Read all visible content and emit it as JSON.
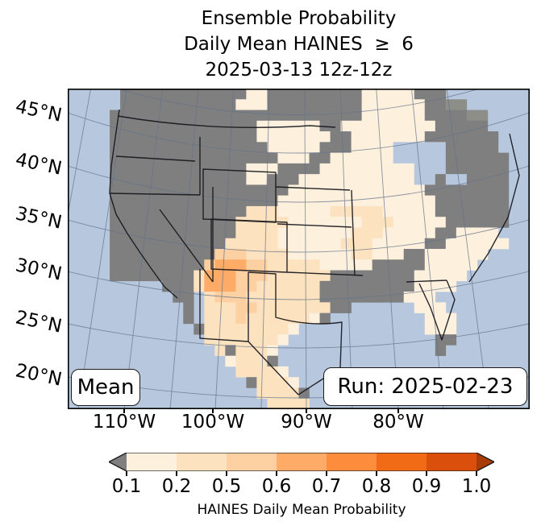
{
  "title": {
    "line1": "Ensemble Probability",
    "line2": "Daily Mean HAINES  ≥  6",
    "line3": "2025-03-13 12z-12z"
  },
  "axes": {
    "lat_labels": [
      "45°N",
      "40°N",
      "35°N",
      "30°N",
      "25°N",
      "20°N"
    ],
    "lon_labels": [
      "110°W",
      "100°W",
      "90°W",
      "80°W"
    ]
  },
  "annotations": {
    "mean": "Mean",
    "run": "Run: 2025-02-23"
  },
  "colorbar": {
    "ticks": [
      "0.1",
      "0.2",
      "0.5",
      "0.6",
      "0.7",
      "0.8",
      "0.9",
      "1.0"
    ],
    "label": "HAINES Daily Mean Probability",
    "segment_colors": [
      "#fdf0dd",
      "#fde2c0",
      "#fdd0a2",
      "#fdab66",
      "#fd8c3c",
      "#f16b16",
      "#d94f0b"
    ],
    "under_color": "#7f7f7f",
    "over_color": "#a83c08"
  },
  "map": {
    "ocean_color": "#b7c8de",
    "gridline_color": "#64748a",
    "border_color": "#17171c",
    "frame_color": "#000000",
    "palette": {
      "g": "#7f7f7f",
      "n": "#8e8e88",
      "L": "#b7c8de",
      "a": "#fdf0dd",
      "b": "#fde2c0",
      "c": "#fdd0a2",
      "d": "#fdab66",
      "e": "#fd8c3c"
    },
    "grid_rows": [
      "~~~~~ggggggggggggaagggggggggaaaaaggg~~~~~~~~",
      "~~~~~gggggggggggaaagggggggggaaaaaaggnn~~~~~~",
      "~~~~ggggggggggggggggggggggggaaaaaaggggnn~~~~",
      "~~~~ggggggggggggggaaaaaaggaaaaaaaaaggggg~~~~",
      "~~~~ggggggggggggggaaaaaaaggaaaaaaaggggggg~~~",
      "~~~~gggggggggggggggaaaaagggaaaaLLLLLggggg~~~",
      "~~~~ggggggggggggggggaaaggaaaaaaLLLLLgggggg~~",
      "~~~~gggggggggggggaaaggggaaaaaaaaaLLLgggggg~~",
      "~~~~gggggggggggggaagggaaaaaaaaaaaLLgLLgggg~~",
      "~~~~gggggggggggggggggaaaaaaaaaaaaagggggggg~~",
      "~~~~ggggggggggggggggaaaaaaaaaaaaaaaggggggg~~",
      "~~~~gggggggggggggbbbaaaaabbbbbaaaaaggggggg~~",
      "~~~~ggggggggggggbbbbbaaaaaaabbbaaaaagggggg~~",
      "~~~~ggggggggggggbbbbaaaaaaabbbaaaaaggaaaa~~~",
      "~~~~gggggggggggbbbbbaaaaaabbbaaaaaggaaaaaa~~",
      "~~~~ggggggggggcccbbbbaaaaaabbaaaggaaaaaa~~~~",
      "~~~~gggggggggcdddccbbbbbaaaaagggggaaaaa~~~~~",
      "~~~~ggggggggbdddcccbbbbbbggggggggaaaaa~~~~~~",
      "~~~~~~~~~gggbdddccbbbbbbgggggggggaaaa~~~~~~~",
      "~~~~~~~~~~gg~bcccbbbbbbbggggggggaaa~~~~~~~~~",
      "~~~~~~~~~~~g~bbbccbbbbbbbgg~~~~~~aaa~~~~~~~~",
      "~~~~~~~~~~~g~bbbcbbbbbbag~~~~~~~~~aaa~~~~~~~",
      "~~~~~~~~~~~~gbbbbbbbba~~~~~~~~~~~~aaa~~~~~~~",
      "~~~~~~~~~~~~~bbbbbbba~~~~~~~~~~~~~~gg~~~~~~~",
      "~~~~~~~~~~~~~~bgbbba~~~~~~~~~~~~~~~g~~~~~~~~",
      "~~~~~~~~~~~~~~~abbbg~~~~~~~~~~~~~~~~~~~~~~~~",
      "~~~~~~~~~~~~~~~~bbbba~~~~~~~~~~~~~~~~~~~~~~~",
      "~~~~~~~~~~~~~~~~~gbbba~~~~~~~~~~~~~~~~~~~~~~",
      "~~~~~~~~~~~~~~~~~~bbbbg~~~~~~~~~~~~~~~~~~~~~",
      "~~~~~~~~~~~~~~~~~~~bbbb~~~~~~~~~~~~~~~~~~~~~"
    ]
  }
}
